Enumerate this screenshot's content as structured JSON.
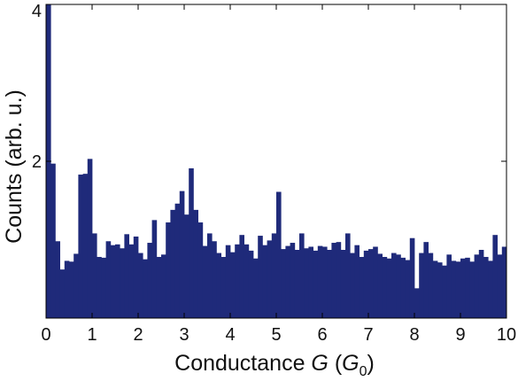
{
  "chart_data": {
    "type": "bar",
    "title": "",
    "xlabel": {
      "prefix": "Conductance ",
      "var": "G",
      "open": " (",
      "unit": "G",
      "unit_sub": "0",
      "close": ")"
    },
    "ylabel": "Counts (arb. u.)",
    "xlim": [
      0,
      10
    ],
    "ylim": [
      0,
      4
    ],
    "grid": false,
    "bin_width": 0.1,
    "x_ticks": [
      {
        "value": 0,
        "label": "0"
      },
      {
        "value": 1,
        "label": "1"
      },
      {
        "value": 2,
        "label": "2"
      },
      {
        "value": 3,
        "label": "3"
      },
      {
        "value": 4,
        "label": "4"
      },
      {
        "value": 5,
        "label": "5"
      },
      {
        "value": 6,
        "label": "6"
      },
      {
        "value": 7,
        "label": "7"
      },
      {
        "value": 8,
        "label": "8"
      },
      {
        "value": 9,
        "label": "9"
      },
      {
        "value": 10,
        "label": "10"
      }
    ],
    "y_ticks": [
      {
        "value": 0,
        "label": ""
      },
      {
        "value": 2,
        "label": "2"
      },
      {
        "value": 4,
        "label": "4"
      }
    ],
    "bar_color": "#1f2a7a",
    "values": [
      4.0,
      1.97,
      0.98,
      0.62,
      0.73,
      0.72,
      0.82,
      1.83,
      1.84,
      2.03,
      1.08,
      0.78,
      0.77,
      0.98,
      0.93,
      0.94,
      0.89,
      1.07,
      0.94,
      1.04,
      0.83,
      0.75,
      0.96,
      1.25,
      0.78,
      0.81,
      1.22,
      1.38,
      1.46,
      1.62,
      1.32,
      1.91,
      1.38,
      1.22,
      0.92,
      1.08,
      0.98,
      0.83,
      0.78,
      0.93,
      0.84,
      0.94,
      1.06,
      0.94,
      0.86,
      0.76,
      1.05,
      0.93,
      0.99,
      1.08,
      1.61,
      0.88,
      0.92,
      0.96,
      0.87,
      1.08,
      0.89,
      0.91,
      0.86,
      0.92,
      0.91,
      0.87,
      0.96,
      0.97,
      0.87,
      1.08,
      0.83,
      0.93,
      0.78,
      0.86,
      0.88,
      0.91,
      0.82,
      0.78,
      0.76,
      0.83,
      0.81,
      0.77,
      0.74,
      1.02,
      0.38,
      0.83,
      0.97,
      0.83,
      0.73,
      0.71,
      0.67,
      0.81,
      0.73,
      0.72,
      0.76,
      0.77,
      0.72,
      0.81,
      0.87,
      0.78,
      0.73,
      1.06,
      0.81,
      0.91
    ]
  }
}
